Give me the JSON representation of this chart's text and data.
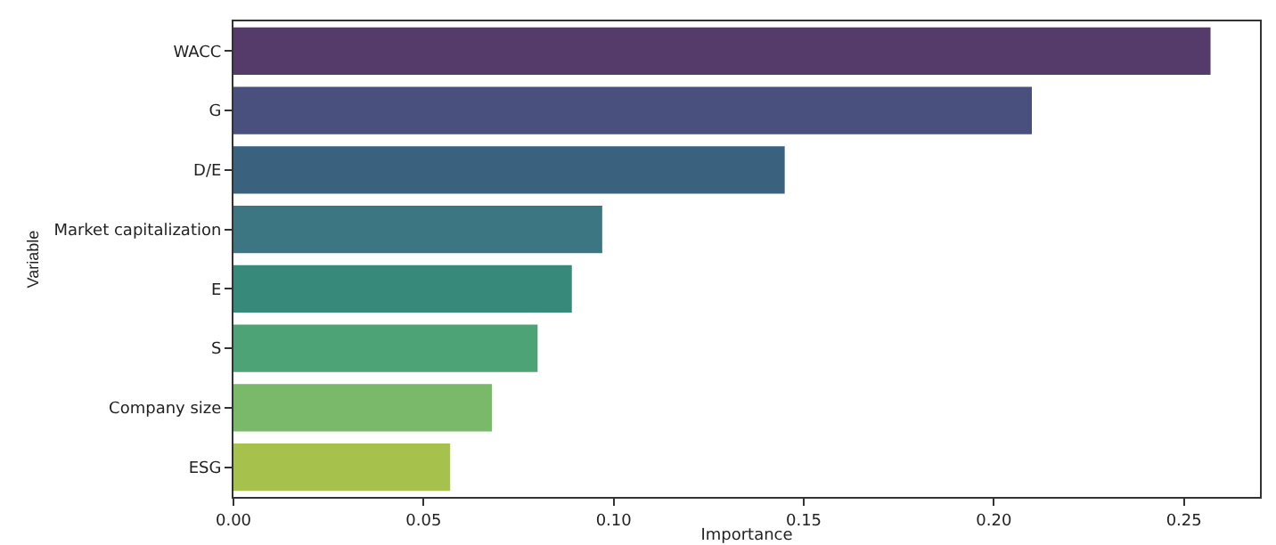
{
  "chart_data": {
    "type": "bar",
    "orientation": "horizontal",
    "xlabel": "Importance",
    "ylabel": "Variable",
    "categories": [
      "WACC",
      "G",
      "D/E",
      "Market capitalization",
      "E",
      "S",
      "Company size",
      "ESG"
    ],
    "values": [
      0.257,
      0.21,
      0.145,
      0.097,
      0.089,
      0.08,
      0.068,
      0.057
    ],
    "colors": [
      "#543b6a",
      "#4a507e",
      "#3a627f",
      "#3b7682",
      "#378a7a",
      "#4da375",
      "#7ab86a",
      "#a7c24c"
    ],
    "xlim": [
      0,
      0.27
    ],
    "xticks": [
      {
        "value": 0,
        "label": "0.00"
      },
      {
        "value": 0.05,
        "label": "0.05"
      },
      {
        "value": 0.1,
        "label": "0.10"
      },
      {
        "value": 0.15,
        "label": "0.15"
      },
      {
        "value": 0.2,
        "label": "0.20"
      },
      {
        "value": 0.25,
        "label": "0.25"
      }
    ],
    "grid": false
  }
}
